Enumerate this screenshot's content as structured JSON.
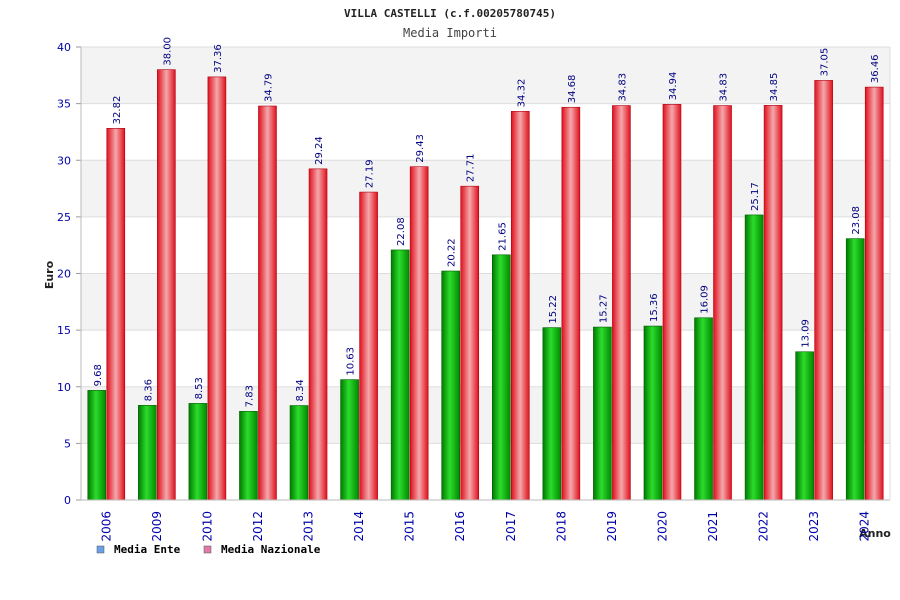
{
  "chart_data": {
    "type": "bar",
    "title": "VILLA CASTELLI (c.f.00205780745)",
    "subtitle": "Media Importi",
    "xlabel": "Anno",
    "ylabel": "Euro",
    "ylim": [
      0,
      40
    ],
    "yticks": [
      0,
      5,
      10,
      15,
      20,
      25,
      30,
      35,
      40
    ],
    "categories": [
      "2006",
      "2009",
      "2010",
      "2012",
      "2013",
      "2014",
      "2015",
      "2016",
      "2017",
      "2018",
      "2019",
      "2020",
      "2021",
      "2022",
      "2023",
      "2024"
    ],
    "series": [
      {
        "name": "Media Ente",
        "color": "#00b400",
        "values": [
          9.68,
          8.36,
          8.53,
          7.83,
          8.34,
          10.63,
          22.08,
          20.22,
          21.65,
          15.22,
          15.27,
          15.36,
          16.09,
          25.17,
          13.09,
          23.08
        ],
        "labels": [
          "9.68",
          "8.36",
          "8.53",
          "7.83",
          "8.34",
          "10.63",
          "22.08",
          "20.22",
          "21.65",
          "15.22",
          "15.27",
          "15.36",
          "16.09",
          "25.17",
          "13.09",
          "23.08"
        ]
      },
      {
        "name": "Media Nazionale",
        "color": "#e8101e",
        "values": [
          32.82,
          38.0,
          37.36,
          34.79,
          29.24,
          27.19,
          29.43,
          27.71,
          34.32,
          34.68,
          34.83,
          34.94,
          34.83,
          34.85,
          37.05,
          36.46
        ],
        "labels": [
          "32.82",
          "38.00",
          "37.36",
          "34.79",
          "29.24",
          "27.19",
          "29.43",
          "27.71",
          "34.32",
          "34.68",
          "34.83",
          "34.94",
          "34.83",
          "34.85",
          "37.05",
          "36.46"
        ]
      }
    ],
    "legend": {
      "position": "bottom-left",
      "items": [
        {
          "label": "Media Ente",
          "color": "#6aa0e8"
        },
        {
          "label": "Media Nazionale",
          "color": "#e07aa8"
        }
      ]
    },
    "grid": true
  }
}
